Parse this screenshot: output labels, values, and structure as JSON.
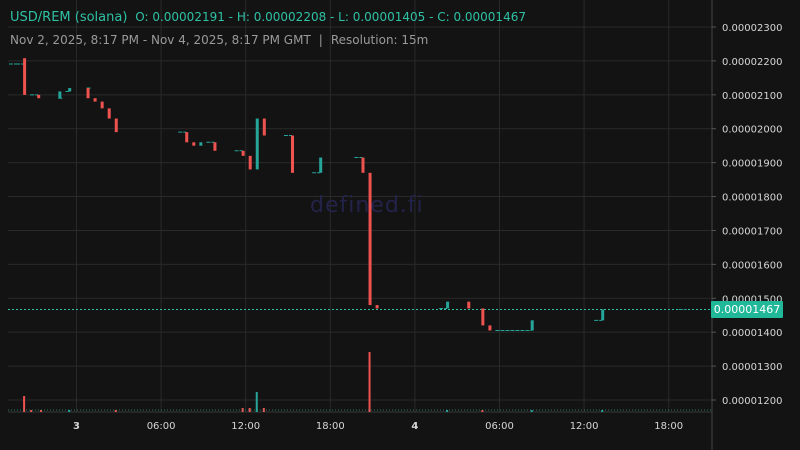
{
  "header": {
    "symbol": "USD/REM (solana)",
    "ohlc": "O: 0.00002191 - H: 0.00002208 - L: 0.00001405 - C: 0.00001467",
    "range": "Nov 2, 2025, 8:17 PM - Nov 4, 2025, 8:17 PM GMT",
    "separator": "|",
    "resolution": "Resolution: 15m"
  },
  "watermark": "defined.fi",
  "last_price_label": "0.00001467",
  "colors": {
    "up": "#26a69a",
    "down": "#ef5350",
    "bg": "#131313",
    "grid": "#2a2a2a",
    "axis_text": "#d6d6d6"
  },
  "chart_data": {
    "type": "candlestick",
    "y_axis_ticks": [
      "0.00002300",
      "0.00002200",
      "0.00002100",
      "0.00002000",
      "0.00001900",
      "0.00001800",
      "0.00001700",
      "0.00001600",
      "0.00001500",
      "0.00001400",
      "0.00001300",
      "0.00001200"
    ],
    "ylim": [
      1.16e-05,
      2.33e-05
    ],
    "x_axis_ticks": [
      {
        "label": "3",
        "t": 4.7167,
        "bold": true
      },
      {
        "label": "06:00",
        "t": 10.7167
      },
      {
        "label": "12:00",
        "t": 16.7167
      },
      {
        "label": "18:00",
        "t": 22.7167
      },
      {
        "label": "4",
        "t": 28.7167,
        "bold": true
      },
      {
        "label": "06:00",
        "t": 34.7167
      },
      {
        "label": "12:00",
        "t": 40.7167
      },
      {
        "label": "18:00",
        "t": 46.7167
      }
    ],
    "x_hours_range": [
      0,
      48
    ],
    "last_price": 1.467e-05,
    "candles": [
      {
        "t": 0.0,
        "o": 2.191e-05,
        "c": 2.191e-05
      },
      {
        "t": 0.5,
        "o": 2.191e-05,
        "c": 2.191e-05
      },
      {
        "t": 1.0,
        "o": 2.208e-05,
        "c": 2.1e-05
      },
      {
        "t": 1.5,
        "o": 2.1e-05,
        "c": 2.1e-05
      },
      {
        "t": 2.0,
        "o": 2.1e-05,
        "c": 2.09e-05
      },
      {
        "t": 3.5,
        "o": 2.09e-05,
        "c": 2.09e-05
      },
      {
        "t": 3.5,
        "o": 2.09e-05,
        "c": 2.11e-05
      },
      {
        "t": 4.0,
        "o": 2.11e-05,
        "c": 2.11e-05
      },
      {
        "t": 4.2,
        "o": 2.11e-05,
        "c": 2.12e-05
      },
      {
        "t": 5.5,
        "o": 2.12e-05,
        "c": 2.12e-05
      },
      {
        "t": 5.5,
        "o": 2.12e-05,
        "c": 2.09e-05
      },
      {
        "t": 6.0,
        "o": 2.09e-05,
        "c": 2.08e-05
      },
      {
        "t": 6.5,
        "o": 2.08e-05,
        "c": 2.06e-05
      },
      {
        "t": 7.0,
        "o": 2.06e-05,
        "c": 2.03e-05
      },
      {
        "t": 7.5,
        "o": 2.03e-05,
        "c": 1.99e-05
      },
      {
        "t": 12.0,
        "o": 1.99e-05,
        "c": 1.99e-05
      },
      {
        "t": 12.5,
        "o": 1.99e-05,
        "c": 1.96e-05
      },
      {
        "t": 13.0,
        "o": 1.96e-05,
        "c": 1.95e-05
      },
      {
        "t": 13.5,
        "o": 1.95e-05,
        "c": 1.96e-05
      },
      {
        "t": 14.0,
        "o": 1.96e-05,
        "c": 1.96e-05
      },
      {
        "t": 14.5,
        "o": 1.96e-05,
        "c": 1.935e-05
      },
      {
        "t": 16.0,
        "o": 1.935e-05,
        "c": 1.935e-05
      },
      {
        "t": 16.5,
        "o": 1.935e-05,
        "c": 1.92e-05
      },
      {
        "t": 17.0,
        "o": 1.92e-05,
        "c": 1.88e-05
      },
      {
        "t": 17.5,
        "o": 1.88e-05,
        "c": 2.03e-05
      },
      {
        "t": 18.0,
        "o": 2.03e-05,
        "c": 1.98e-05
      },
      {
        "t": 19.5,
        "o": 1.98e-05,
        "c": 1.98e-05
      },
      {
        "t": 20.0,
        "o": 1.98e-05,
        "c": 1.87e-05
      },
      {
        "t": 21.5,
        "o": 1.87e-05,
        "c": 1.87e-05
      },
      {
        "t": 22.0,
        "o": 1.87e-05,
        "c": 1.915e-05
      },
      {
        "t": 24.5,
        "o": 1.915e-05,
        "c": 1.915e-05
      },
      {
        "t": 25.0,
        "o": 1.915e-05,
        "c": 1.87e-05
      },
      {
        "t": 25.5,
        "o": 1.87e-05,
        "c": 1.48e-05
      },
      {
        "t": 26.0,
        "o": 1.48e-05,
        "c": 1.47e-05
      },
      {
        "t": 30.5,
        "o": 1.47e-05,
        "c": 1.47e-05
      },
      {
        "t": 31.0,
        "o": 1.47e-05,
        "c": 1.49e-05
      },
      {
        "t": 32.5,
        "o": 1.49e-05,
        "c": 1.47e-05
      },
      {
        "t": 33.5,
        "o": 1.47e-05,
        "c": 1.42e-05
      },
      {
        "t": 34.0,
        "o": 1.42e-05,
        "c": 1.405e-05
      },
      {
        "t": 34.5,
        "o": 1.405e-05,
        "c": 1.405e-05
      },
      {
        "t": 37.0,
        "o": 1.405e-05,
        "c": 1.435e-05
      },
      {
        "t": 41.5,
        "o": 1.435e-05,
        "c": 1.435e-05
      },
      {
        "t": 42.0,
        "o": 1.435e-05,
        "c": 1.467e-05
      },
      {
        "t": 47.5,
        "o": 1.467e-05,
        "c": 1.467e-05
      }
    ],
    "volume": [
      {
        "t": 1.0,
        "v": 8,
        "dir": "down"
      },
      {
        "t": 1.5,
        "v": 1,
        "dir": "down"
      },
      {
        "t": 2.2,
        "v": 1,
        "dir": "down"
      },
      {
        "t": 4.2,
        "v": 1,
        "dir": "up"
      },
      {
        "t": 7.5,
        "v": 1,
        "dir": "down"
      },
      {
        "t": 16.5,
        "v": 2,
        "dir": "down"
      },
      {
        "t": 17.0,
        "v": 2,
        "dir": "down"
      },
      {
        "t": 17.5,
        "v": 10,
        "dir": "up"
      },
      {
        "t": 18.0,
        "v": 2,
        "dir": "down"
      },
      {
        "t": 25.5,
        "v": 30,
        "dir": "down"
      },
      {
        "t": 31.0,
        "v": 1,
        "dir": "up"
      },
      {
        "t": 33.5,
        "v": 1,
        "dir": "down"
      },
      {
        "t": 37.0,
        "v": 1,
        "dir": "up"
      },
      {
        "t": 42.0,
        "v": 1,
        "dir": "up"
      }
    ]
  }
}
